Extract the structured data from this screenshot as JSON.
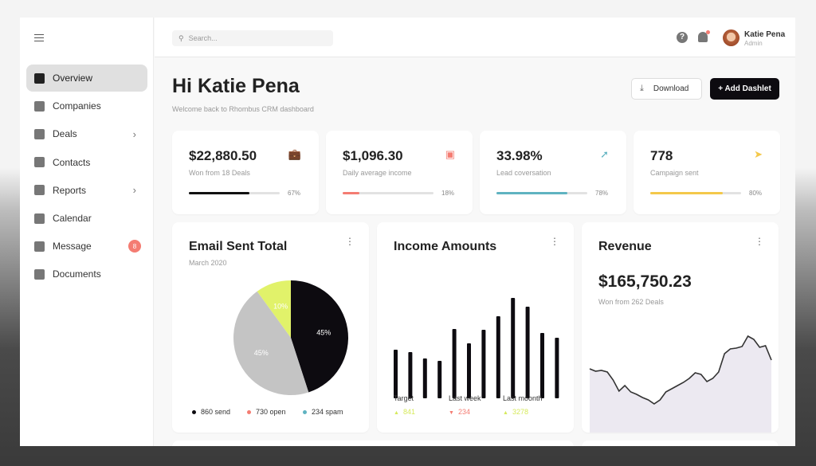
{
  "sidebar": {
    "items": [
      {
        "label": "Overview",
        "icon": "dashboard-icon",
        "active": true
      },
      {
        "label": "Companies",
        "icon": "building-icon"
      },
      {
        "label": "Deals",
        "icon": "briefcase-icon",
        "chevron": true
      },
      {
        "label": "Contacts",
        "icon": "contact-icon"
      },
      {
        "label": "Reports",
        "icon": "clipboard-icon",
        "chevron": true
      },
      {
        "label": "Calendar",
        "icon": "calendar-icon"
      },
      {
        "label": "Message",
        "icon": "mail-icon",
        "badge": "8"
      },
      {
        "label": "Documents",
        "icon": "document-icon"
      }
    ]
  },
  "topbar": {
    "search_placeholder": "Search...",
    "user_name": "Katie Pena",
    "user_role": "Admin"
  },
  "header": {
    "title": "Hi Katie Pena",
    "subtitle": "Welcome back to Rhombus CRM dashboard",
    "download_label": "Download",
    "add_label": "+ Add Dashlet"
  },
  "stats": [
    {
      "value": "$22,880.50",
      "label": "Won from 18 Deals",
      "percent": 67,
      "percent_label": "67%",
      "color": "#111111",
      "icon": "briefcase-check-icon"
    },
    {
      "value": "$1,096.30",
      "label": "Daily average income",
      "percent": 18,
      "percent_label": "18%",
      "color": "#f47c72",
      "icon": "wallet-icon"
    },
    {
      "value": "33.98%",
      "label": "Lead coversation",
      "percent": 78,
      "percent_label": "78%",
      "color": "#5fb3c1",
      "icon": "trending-up-icon"
    },
    {
      "value": "778",
      "label": "Campaign sent",
      "percent": 80,
      "percent_label": "80%",
      "color": "#f4c84a",
      "icon": "send-icon"
    }
  ],
  "chart_data": [
    {
      "type": "pie",
      "title": "Email Sent Total",
      "subtitle": "March 2020",
      "slices": [
        {
          "label": "45%",
          "value": 45,
          "color": "#0d0b10",
          "legend": "860 send"
        },
        {
          "label": "45%",
          "value": 45,
          "color": "#c4c4c4",
          "legend": "730 open"
        },
        {
          "label": "10%",
          "value": 10,
          "color": "#e1f26a",
          "legend": "234 spam"
        }
      ],
      "legend_colors": [
        "#0d0b10",
        "#f47c72",
        "#5fb3c1"
      ]
    },
    {
      "type": "bar",
      "title": "Income Amounts",
      "values": [
        61,
        58,
        50,
        47,
        87,
        69,
        86,
        103,
        126,
        115,
        82,
        76
      ],
      "kpis": [
        {
          "label": "Target",
          "value": "841",
          "trend": "up",
          "color": "#d6ea5c"
        },
        {
          "label": "Last week",
          "value": "234",
          "trend": "down",
          "color": "#f47c72"
        },
        {
          "label": "Last moonth",
          "value": "3278",
          "trend": "up",
          "color": "#d6ea5c"
        }
      ]
    },
    {
      "type": "area",
      "title": "Revenue",
      "value": "$165,750.23",
      "subtitle": "Won from 262 Deals",
      "values": [
        92,
        89,
        90,
        88,
        78,
        64,
        71,
        63,
        60,
        56,
        53,
        48,
        53,
        63,
        67,
        71,
        75,
        80,
        87,
        85,
        76,
        80,
        88,
        111,
        117,
        118,
        120,
        133,
        129,
        119,
        121,
        103
      ]
    }
  ]
}
